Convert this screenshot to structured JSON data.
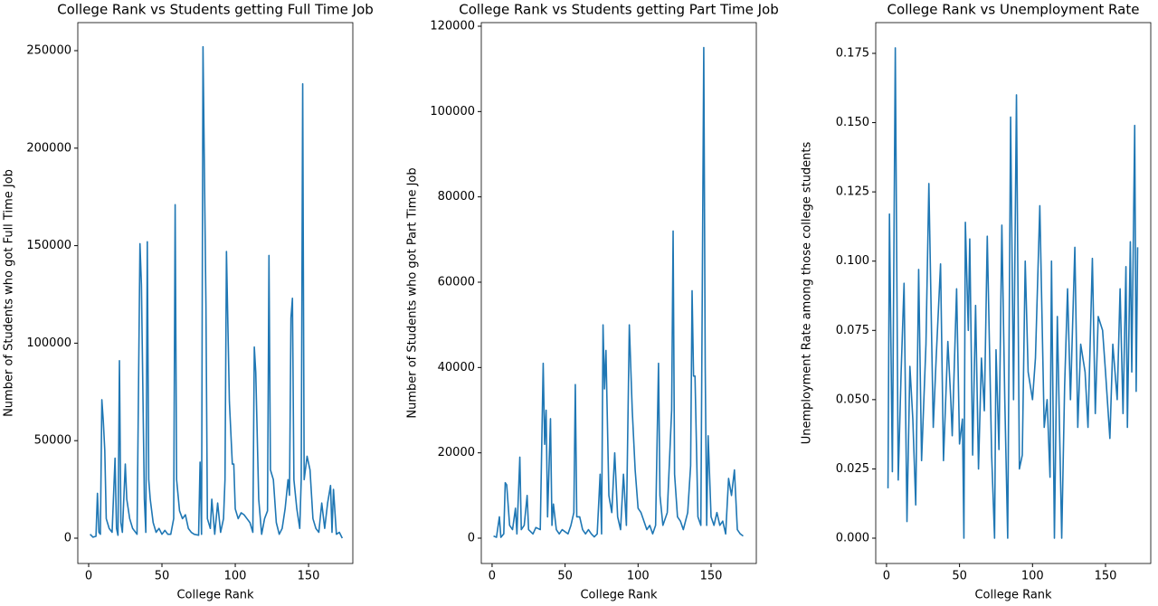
{
  "chart_data": [
    {
      "type": "line",
      "title": "College Rank vs Students getting Full Time Job",
      "x_label": "College Rank",
      "y_label": "Number of Students who got Full Time Job",
      "color": "#1f77b4",
      "x": [
        1,
        3,
        5,
        6,
        7,
        8,
        9,
        10,
        11,
        12,
        14,
        16,
        18,
        19,
        20,
        21,
        22,
        23,
        25,
        26,
        28,
        30,
        33,
        35,
        36,
        38,
        39,
        40,
        41,
        42,
        44,
        46,
        48,
        50,
        52,
        54,
        56,
        58,
        59,
        60,
        62,
        64,
        66,
        68,
        70,
        72,
        75,
        76,
        77,
        78,
        80,
        81,
        83,
        84,
        86,
        88,
        90,
        92,
        93,
        94,
        96,
        98,
        99,
        100,
        102,
        104,
        106,
        108,
        110,
        112,
        113,
        114,
        116,
        118,
        120,
        122,
        123,
        124,
        126,
        128,
        130,
        132,
        134,
        136,
        137,
        138,
        139,
        140,
        142,
        144,
        145,
        146,
        147,
        149,
        151,
        153,
        155,
        157,
        159,
        161,
        163,
        165,
        166,
        167,
        169,
        171,
        173
      ],
      "values": [
        2000,
        500,
        1000,
        23000,
        3000,
        2000,
        71000,
        60000,
        45000,
        10000,
        5000,
        3000,
        41000,
        5000,
        1500,
        91000,
        8000,
        3000,
        38000,
        20000,
        10000,
        5000,
        2000,
        151000,
        130000,
        20000,
        3000,
        152000,
        30000,
        20000,
        8000,
        3000,
        5000,
        2000,
        4000,
        2000,
        2000,
        10000,
        171000,
        30000,
        14000,
        10000,
        12000,
        5000,
        3000,
        2000,
        1500,
        39000,
        2000,
        252000,
        120000,
        10000,
        5000,
        20000,
        2000,
        18000,
        3000,
        10000,
        30000,
        147000,
        70000,
        38000,
        38000,
        15000,
        10000,
        13000,
        12000,
        10000,
        8000,
        3000,
        98000,
        85000,
        20000,
        2000,
        10000,
        14000,
        145000,
        35000,
        30000,
        8000,
        2000,
        5000,
        15000,
        30000,
        22000,
        113000,
        123000,
        30000,
        15000,
        5000,
        30000,
        233000,
        30000,
        42000,
        35000,
        10000,
        5000,
        3000,
        18000,
        5000,
        18000,
        27000,
        3000,
        25000,
        2000,
        3000,
        0
      ],
      "xlim": [
        -7.4,
        180.2
      ],
      "ylim": [
        -12987,
        264378
      ],
      "xticks": [
        0,
        50,
        100,
        150
      ],
      "yticks": [
        0,
        50000,
        100000,
        150000,
        200000,
        250000
      ]
    },
    {
      "type": "line",
      "title": "College Rank vs Students getting Part Time Job",
      "x_label": "College Rank",
      "y_label": "Number of Students who got Part Time Job",
      "color": "#1f77b4",
      "x": [
        1,
        3,
        5,
        6,
        8,
        9,
        10,
        12,
        14,
        16,
        17,
        19,
        20,
        22,
        24,
        25,
        28,
        30,
        33,
        35,
        36,
        37,
        38,
        40,
        41,
        42,
        44,
        46,
        48,
        52,
        54,
        56,
        57,
        58,
        60,
        62,
        64,
        66,
        68,
        70,
        72,
        74,
        75,
        76,
        77,
        78,
        80,
        82,
        84,
        86,
        88,
        90,
        92,
        94,
        96,
        98,
        100,
        102,
        104,
        106,
        108,
        110,
        112,
        114,
        115,
        117,
        120,
        123,
        124,
        125,
        127,
        129,
        131,
        134,
        136,
        137,
        138,
        139,
        141,
        143,
        145,
        146,
        147,
        148,
        150,
        152,
        154,
        156,
        158,
        160,
        162,
        164,
        166,
        168,
        170,
        172
      ],
      "values": [
        500,
        200,
        5000,
        200,
        1000,
        13000,
        12500,
        3000,
        2000,
        7000,
        1000,
        19000,
        2000,
        3000,
        10000,
        2000,
        1000,
        2500,
        2000,
        41000,
        22000,
        30000,
        5000,
        28000,
        3000,
        8000,
        2000,
        1000,
        2000,
        1000,
        3000,
        6000,
        36000,
        5000,
        5000,
        2000,
        1000,
        2000,
        1000,
        300,
        1000,
        15000,
        1000,
        50000,
        35000,
        44000,
        10000,
        6000,
        20000,
        5000,
        2000,
        15000,
        3000,
        50000,
        30000,
        16000,
        7000,
        6000,
        4000,
        2000,
        3000,
        1000,
        3000,
        41000,
        10000,
        3000,
        6000,
        30000,
        72000,
        15000,
        5000,
        4000,
        2000,
        6000,
        17000,
        58000,
        38000,
        38000,
        5000,
        3000,
        115000,
        40000,
        3000,
        24000,
        5000,
        3000,
        6000,
        3000,
        4000,
        1000,
        14000,
        10000,
        16000,
        2000,
        1000,
        500
      ],
      "xlim": [
        -7.4,
        181
      ],
      "ylim": [
        -5936,
        120848
      ],
      "xticks": [
        0,
        50,
        100,
        150
      ],
      "yticks": [
        0,
        20000,
        40000,
        60000,
        80000,
        100000,
        120000
      ]
    },
    {
      "type": "line",
      "title": "College Rank vs Unemployment Rate",
      "x_label": "College Rank",
      "y_label": "Unemployment Rate among those college students",
      "color": "#1f77b4",
      "x": [
        1,
        2,
        4,
        6,
        8,
        10,
        12,
        14,
        16,
        18,
        20,
        22,
        24,
        27,
        29,
        32,
        34,
        37,
        39,
        42,
        44,
        45,
        48,
        50,
        52,
        53,
        54,
        56,
        57,
        59,
        61,
        63,
        65,
        67,
        69,
        72,
        74,
        75,
        77,
        79,
        81,
        83,
        85,
        87,
        89,
        91,
        93,
        95,
        97,
        100,
        102,
        105,
        108,
        110,
        112,
        113,
        115,
        117,
        120,
        122,
        124,
        126,
        129,
        131,
        133,
        136,
        138,
        141,
        143,
        145,
        148,
        150,
        153,
        155,
        158,
        160,
        162,
        164,
        165,
        167,
        168,
        170,
        171,
        172
      ],
      "values": [
        0.018,
        0.117,
        0.024,
        0.177,
        0.021,
        0.06,
        0.092,
        0.006,
        0.062,
        0.043,
        0.012,
        0.097,
        0.028,
        0.07,
        0.128,
        0.04,
        0.065,
        0.099,
        0.028,
        0.071,
        0.05,
        0.037,
        0.09,
        0.034,
        0.043,
        0.0,
        0.114,
        0.075,
        0.108,
        0.03,
        0.084,
        0.025,
        0.065,
        0.046,
        0.109,
        0.03,
        0.0,
        0.068,
        0.032,
        0.113,
        0.05,
        0.0,
        0.152,
        0.05,
        0.16,
        0.025,
        0.03,
        0.1,
        0.06,
        0.05,
        0.065,
        0.12,
        0.04,
        0.05,
        0.022,
        0.1,
        0.0,
        0.08,
        0.0,
        0.055,
        0.09,
        0.05,
        0.105,
        0.04,
        0.07,
        0.06,
        0.04,
        0.101,
        0.045,
        0.08,
        0.075,
        0.06,
        0.036,
        0.07,
        0.05,
        0.09,
        0.045,
        0.098,
        0.04,
        0.107,
        0.06,
        0.149,
        0.053,
        0.105
      ],
      "xlim": [
        -7.4,
        181
      ],
      "ylim": [
        -0.00914,
        0.1861
      ],
      "xticks": [
        0,
        50,
        100,
        150
      ],
      "yticks": [
        {
          "value": 0,
          "label": "0.000"
        },
        0.025,
        {
          "value": 0.05,
          "label": "0.050"
        },
        0.075,
        {
          "value": 0.1,
          "label": "0.100"
        },
        0.125,
        {
          "value": 0.15,
          "label": "0.150"
        },
        0.175
      ]
    }
  ]
}
